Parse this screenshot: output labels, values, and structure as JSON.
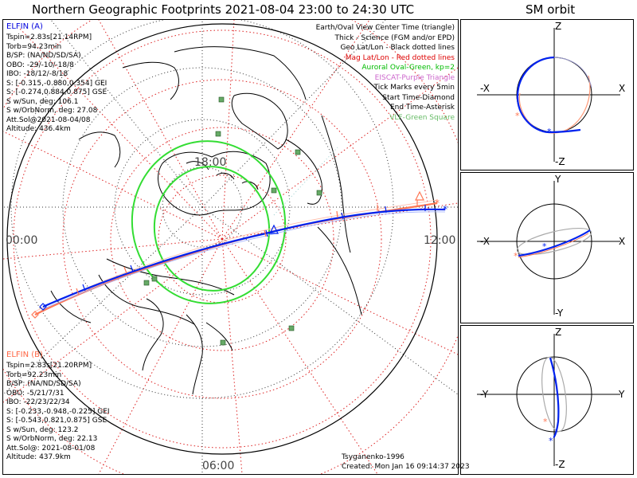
{
  "title": "Northern Geographic Footprints 2021-08-04 23:00 to 24:30 UTC",
  "sm_title": "SM orbit",
  "elfin_a": {
    "name": "ELFIN (A)",
    "color": "#0000dd",
    "lines": [
      "Tspin=2.83s[21.14RPM]",
      "Torb=94.23min",
      "B/SP: (NA/ND/SD/SA)",
      "OBO: -29/-10/-18/8",
      "IBO: -18/12/-8/18",
      "S: [-0.315,-0.880,0.354] GEI",
      "S: [-0.274,0.884,0.875] GSE",
      "S w/Sun, deg: 106.1",
      "S w/OrbNorm, deg: 27.08",
      "Att.Sol@2021-08-04/08",
      "Altitude: 436.4km"
    ]
  },
  "elfin_b": {
    "name": "ELFIN (B)",
    "color": "#ff6644",
    "lines": [
      "Tspin=2.83s[21.20RPM]",
      "Torb=92.23min",
      "B/SP: (NA/ND/SD/SA)",
      "OBO: -5/21/7/31",
      "IBO: -22/23/22/34",
      "S: [-0.233,-0.948,-0.225] GEI",
      "S: [-0.543,0.821,0.875] GSE",
      "S w/Sun, deg: 123.2",
      "S w/OrbNorm, deg: 22.13",
      "Att.Sol@: 2021-08-01/08",
      "Altitude: 437.9km"
    ]
  },
  "legend": [
    {
      "text": "Earth/Oval View Center Time (triangle)",
      "color": "#000000"
    },
    {
      "text": "Thick - Science (FGM and/or EPD)",
      "color": "#000000"
    },
    {
      "text": "Geo Lat/Lon - Black dotted lines",
      "color": "#000000"
    },
    {
      "text": "Mag Lat/Lon - Red dotted lines",
      "color": "#dd0000"
    },
    {
      "text": "Auroral Oval-Green, kp=2",
      "color": "#00bb00"
    },
    {
      "text": "EISCAT-Purple Triangle",
      "color": "#cc66cc"
    },
    {
      "text": "Tick Marks every 5min",
      "color": "#000000"
    },
    {
      "text": "Start Time-Diamond",
      "color": "#000000"
    },
    {
      "text": "End Time-Asterisk",
      "color": "#000000"
    },
    {
      "text": "VLF-Green Square",
      "color": "#66bb66"
    }
  ],
  "time_labels": {
    "left": "00:00",
    "right": "12:00",
    "top": "18:00",
    "bottom": "06:00"
  },
  "footer": {
    "model": "Tsyganenko-1996",
    "created": "Created: Mon Jan 16 09:14:37 2023"
  },
  "sm_panels": [
    {
      "top": "Z",
      "bottom": "-Z",
      "left": "-X",
      "right": "X"
    },
    {
      "top": "Y",
      "bottom": "-Y",
      "left": "-X",
      "right": "X"
    },
    {
      "top": "Z",
      "bottom": "-Z",
      "left": "-Y",
      "right": "Y"
    }
  ]
}
